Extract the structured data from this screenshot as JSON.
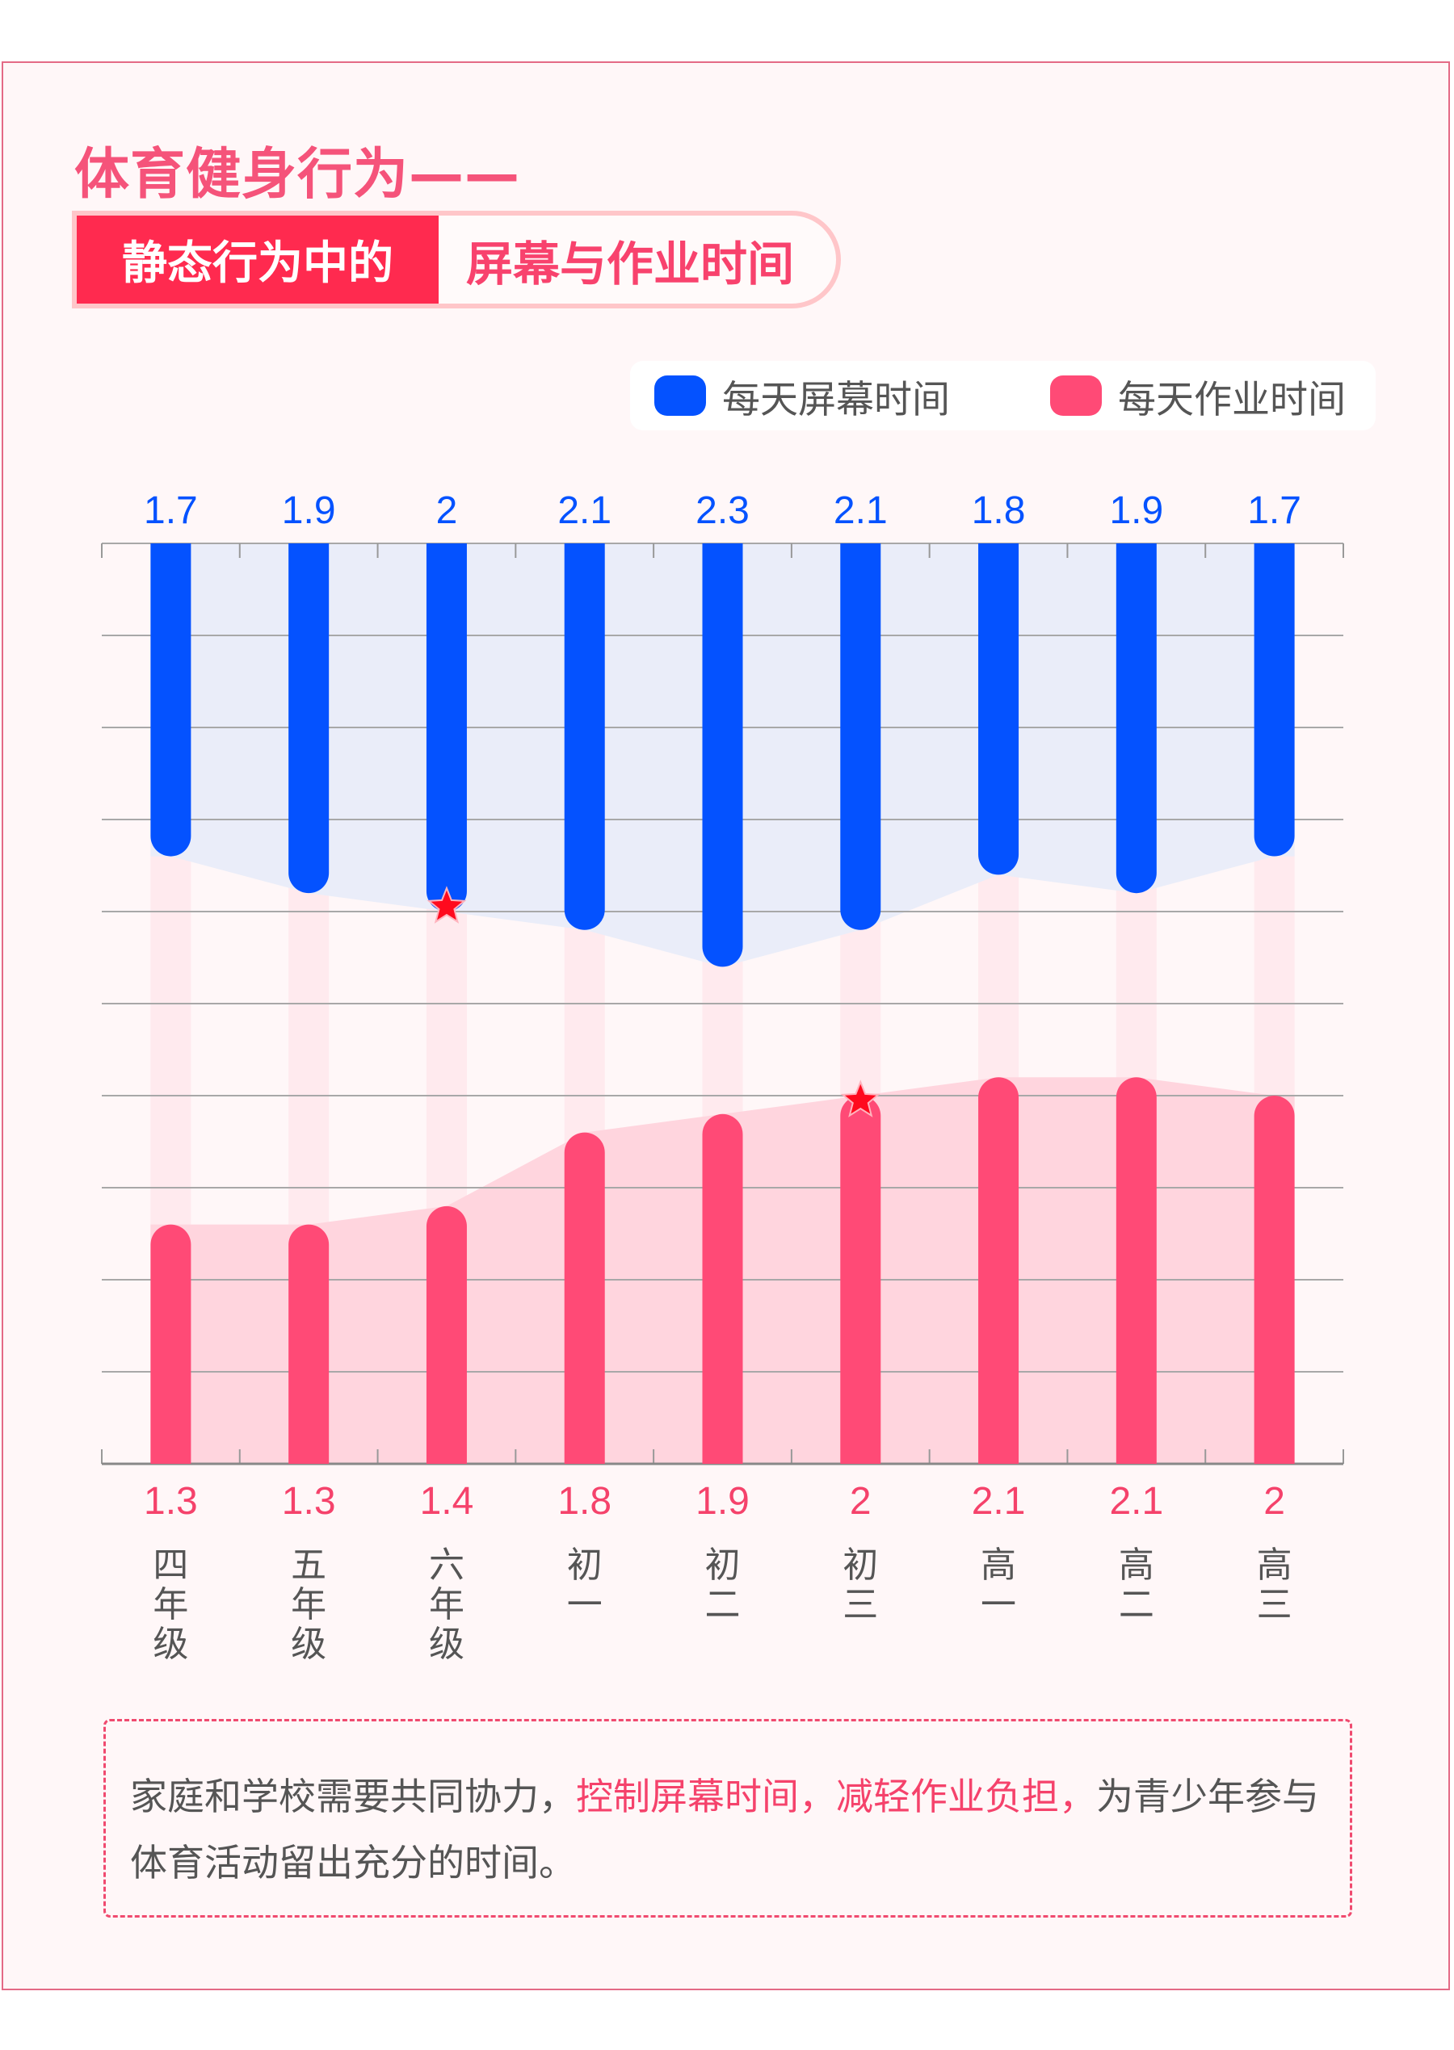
{
  "title": "体育健身行为——",
  "badge": {
    "left": "静态行为中的",
    "right": "屏幕与作业时间"
  },
  "legend": [
    {
      "label": "每天屏幕时间",
      "color": "#0452ff"
    },
    {
      "label": "每天作业时间",
      "color": "#ff4a76"
    }
  ],
  "note": {
    "part1": "家庭和学校需要共同协力，",
    "highlight": "控制屏幕时间，减轻作业负担，",
    "part2": "为青少年参与体育活动留出充分的时间。"
  },
  "chart_data": {
    "type": "bar",
    "categories": [
      "四年级",
      "五年级",
      "六年级",
      "初一",
      "初二",
      "初三",
      "高一",
      "高二",
      "高三"
    ],
    "series": [
      {
        "name": "每天屏幕时间",
        "values": [
          1.7,
          1.9,
          2,
          2.1,
          2.3,
          2.1,
          1.8,
          1.9,
          1.7
        ],
        "color": "#0452ff",
        "direction": "down-from-top",
        "highlight_index": 2
      },
      {
        "name": "每天作业时间",
        "values": [
          1.3,
          1.3,
          1.4,
          1.8,
          1.9,
          2,
          2.1,
          2.1,
          2
        ],
        "color": "#ff4a76",
        "direction": "up-from-bottom",
        "highlight_index": 5
      }
    ],
    "ylim": [
      0,
      5
    ],
    "grid_step": 0.5,
    "grid": true,
    "legend_position": "top-right",
    "colors": {
      "screen_area": "#eaedf9",
      "homework_area": "#ffd5de",
      "band": "#ffe6eb",
      "value_screen": "#0452ff",
      "value_homework": "#f5426b",
      "category": "#555555",
      "star": "#ff0a1e"
    }
  }
}
